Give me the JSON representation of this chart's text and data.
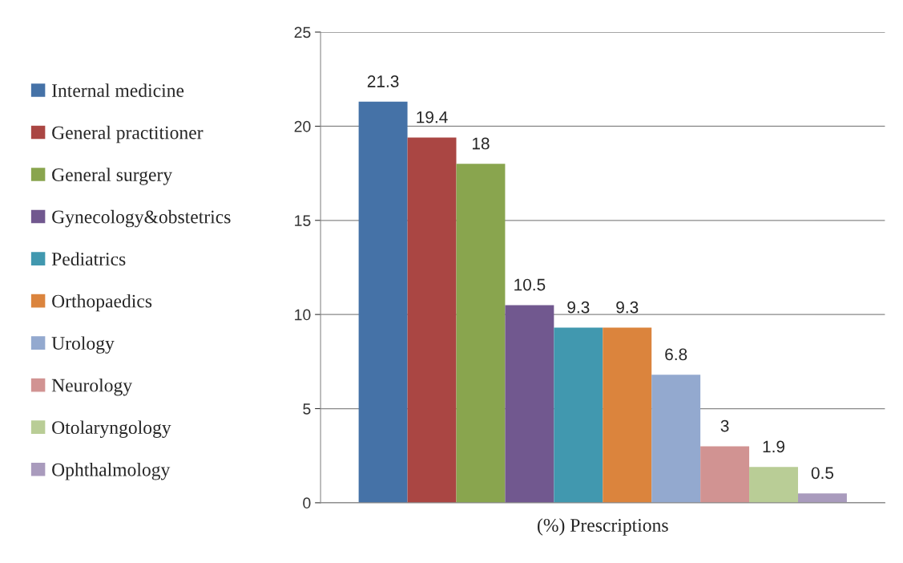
{
  "chart_data": {
    "type": "bar",
    "categories": [
      "(%) Prescriptions"
    ],
    "series": [
      {
        "name": "Internal medicine",
        "color": "#4572a7",
        "values": [
          21.3
        ]
      },
      {
        "name": "General practitioner",
        "color": "#aa4643",
        "values": [
          19.4
        ]
      },
      {
        "name": "General surgery",
        "color": "#89a54e",
        "values": [
          18
        ]
      },
      {
        "name": "Gynecology&obstetrics",
        "color": "#71588f",
        "values": [
          10.5
        ]
      },
      {
        "name": "Pediatrics",
        "color": "#4198af",
        "values": [
          9.3
        ]
      },
      {
        "name": "Orthopaedics",
        "color": "#db843d",
        "values": [
          9.3
        ]
      },
      {
        "name": "Urology",
        "color": "#93a9cf",
        "values": [
          6.8
        ]
      },
      {
        "name": "Neurology",
        "color": "#d19392",
        "values": [
          3
        ]
      },
      {
        "name": "Otolaryngology",
        "color": "#b9cd96",
        "values": [
          1.9
        ]
      },
      {
        "name": "Ophthalmology",
        "color": "#a99bbd",
        "values": [
          0.5
        ]
      }
    ],
    "ylim": [
      0,
      25
    ],
    "yticks": [
      0,
      5,
      10,
      15,
      20,
      25
    ],
    "grid": "y",
    "legend": "left",
    "data_labels": true
  }
}
